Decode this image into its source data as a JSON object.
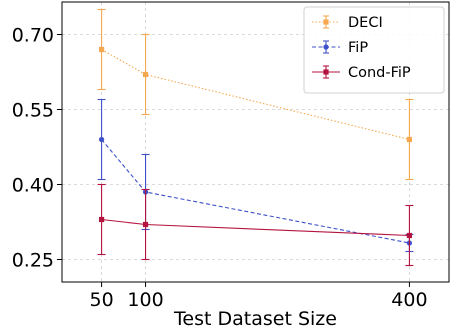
{
  "chart_data": {
    "type": "line",
    "title": "",
    "xlabel": "Test Dataset Size",
    "ylabel": "",
    "x": [
      50,
      100,
      400
    ],
    "x_ticks": [
      "50",
      "100",
      "400"
    ],
    "y_ticks": [
      "0.25",
      "0.40",
      "0.55",
      "0.70"
    ],
    "xlim": [
      5,
      445
    ],
    "ylim": [
      0.205,
      0.765
    ],
    "grid": true,
    "legend_position": "top-right",
    "series": [
      {
        "name": "DECI",
        "values": [
          0.67,
          0.62,
          0.49
        ],
        "errors": [
          0.08,
          0.08,
          0.08
        ],
        "color": "#f5a84f",
        "line_style": "dotted",
        "marker": "square"
      },
      {
        "name": "FiP",
        "values": [
          0.49,
          0.385,
          0.283
        ],
        "errors": [
          0.08,
          0.075,
          0.017
        ],
        "color": "#3f51c8",
        "line_style": "dashed",
        "marker": "circle"
      },
      {
        "name": "Cond-FiP",
        "values": [
          0.33,
          0.32,
          0.298
        ],
        "errors": [
          0.07,
          0.07,
          0.06
        ],
        "color": "#b5133f",
        "line_style": "solid",
        "marker": "square"
      }
    ]
  }
}
